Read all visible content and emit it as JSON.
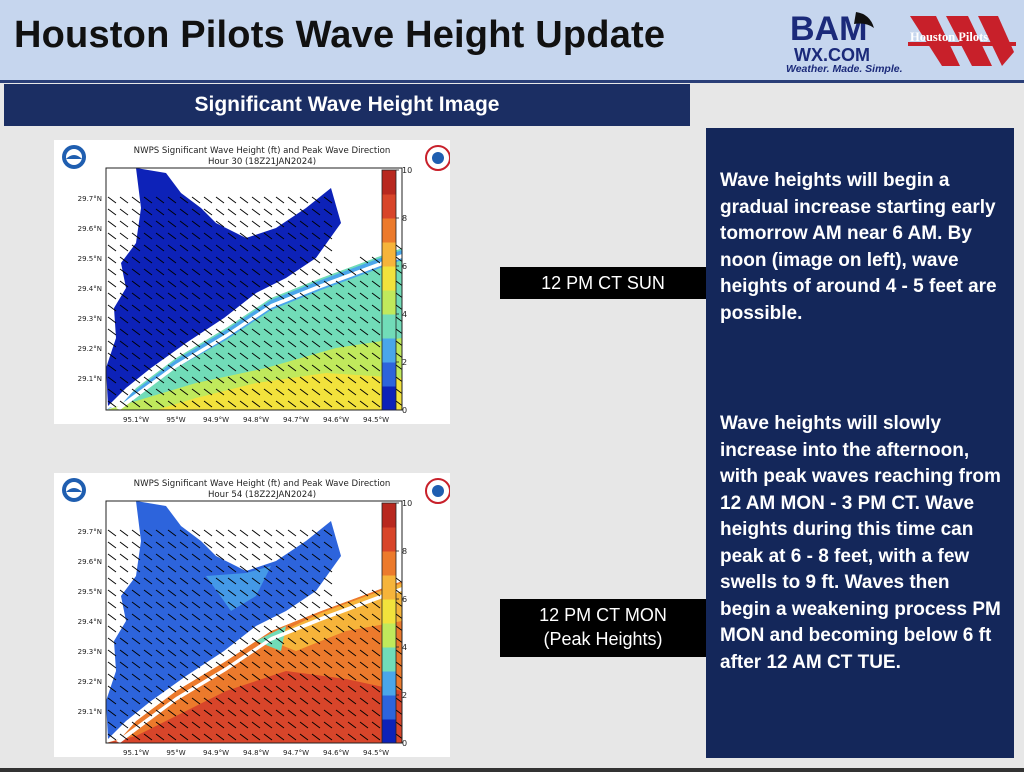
{
  "header": {
    "title": "Houston Pilots Wave Height Update",
    "bam_logo": {
      "top": "BAM",
      "middle": "WX.COM",
      "tagline": "Weather. Made. Simple."
    },
    "hp_logo": {
      "text": "Houston Pilots"
    }
  },
  "section": {
    "title": "Significant Wave Height Image"
  },
  "maps": [
    {
      "title_line1": "NWPS Significant Wave Height (ft) and Peak Wave Direction",
      "title_line2": "Hour 30 (18Z21JAN2024)",
      "tag": "12 PM CT SUN",
      "scheme": "moderate"
    },
    {
      "title_line1": "NWPS Significant Wave Height (ft) and Peak Wave Direction",
      "title_line2": "Hour 54 (18Z22JAN2024)",
      "tag_line1": "12 PM CT MON",
      "tag_line2": "(Peak Heights)",
      "scheme": "peak"
    }
  ],
  "axes": {
    "lat_labels": [
      "29.7°N",
      "29.6°N",
      "29.5°N",
      "29.4°N",
      "29.3°N",
      "29.2°N",
      "29.1°N"
    ],
    "lon_labels": [
      "95.1°W",
      "95°W",
      "94.9°W",
      "94.8°W",
      "94.7°W",
      "94.6°W",
      "94.5°W"
    ],
    "colorbar_ticks": [
      "0",
      "2",
      "4",
      "6",
      "8",
      "10"
    ]
  },
  "colors": {
    "header_bg": "#c6d6ee",
    "navy": "#1b2e63",
    "panel": "#14275a",
    "scale": [
      "#0d22b8",
      "#2d64dc",
      "#4aa6ea",
      "#71dcb8",
      "#c0e95c",
      "#f2e23c",
      "#f6b43a",
      "#ec7a2c",
      "#d8452a",
      "#b8281f"
    ]
  },
  "panel": {
    "paragraph1": "Wave heights will begin a gradual increase starting early tomorrow AM near 6 AM. By noon (image on left), wave heights of around 4 - 5 feet are possible.",
    "paragraph2": "Wave heights will slowly increase into the afternoon, with peak waves reaching from 12 AM MON - 3 PM CT. Wave heights during this time can peak at 6 - 8 feet, with a few swells to 9 ft. Waves then begin a weakening process PM MON and becoming below 6 ft after 12 AM CT TUE."
  }
}
